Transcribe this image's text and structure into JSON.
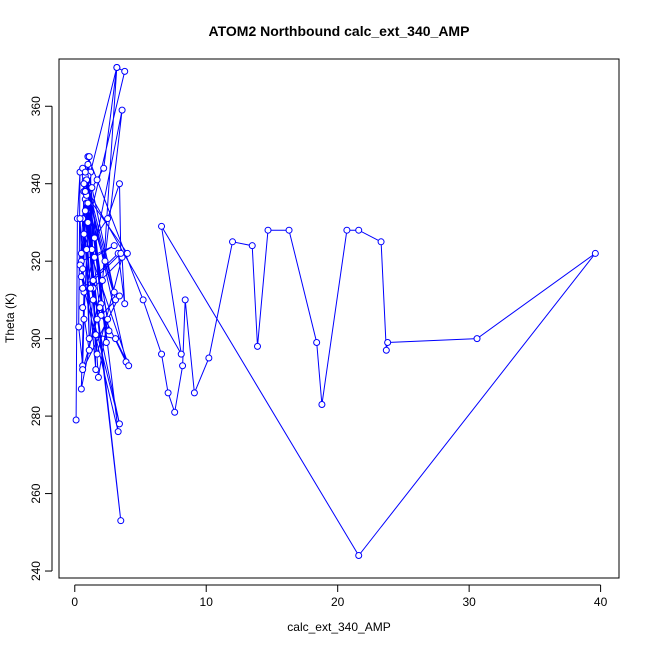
{
  "chart_data": {
    "type": "scatter",
    "title": "ATOM2 Northbound calc_ext_340_AMP",
    "xlabel": "calc_ext_340_AMP",
    "ylabel": "Theta (K)",
    "xlim": [
      -1.2,
      41.4
    ],
    "ylim": [
      238.2,
      372.2
    ],
    "xticks": [
      0,
      10,
      20,
      30,
      40
    ],
    "yticks": [
      240,
      260,
      280,
      300,
      320,
      340,
      360
    ],
    "grid": false,
    "legend": "none",
    "style": "points connected by lines",
    "color": "#0000ff",
    "series": [
      {
        "x": [
          0.1,
          0.2,
          0.4,
          0.3,
          0.6,
          0.7,
          1.0,
          3.5,
          0.8,
          1.5,
          3.0,
          0.5,
          0.8,
          2.2,
          3.2,
          1.2,
          1.6,
          0.6,
          0.9,
          1.8,
          2.5,
          0.6,
          1.1,
          0.9,
          1.3,
          1.0,
          2.0,
          3.2,
          3.8,
          0.5,
          0.4,
          0.7,
          0.5,
          2.1,
          3.6,
          0.6,
          1.1,
          1.4,
          4.0,
          0.7,
          1.5,
          3.3,
          0.5,
          0.9,
          1.9,
          3.9,
          0.8,
          2.3,
          3.1,
          0.7,
          1.2,
          2.0,
          3.4,
          0.6,
          1.7,
          3.4,
          0.4,
          0.8,
          1.7,
          3.6,
          3.8,
          3.3,
          0.6,
          1.0,
          1.6,
          3.1,
          4.1,
          0.7,
          1.4,
          2.6,
          0.8,
          1.3,
          3.0,
          0.9,
          2.4,
          1.0,
          1.7,
          5.2,
          6.6,
          7.1,
          7.6,
          8.2,
          8.4,
          9.1,
          10.2,
          12.0,
          13.5,
          13.9,
          14.7,
          16.3,
          18.4,
          18.8,
          20.7,
          21.6,
          23.3,
          23.7,
          23.8,
          30.6,
          39.6,
          21.6,
          6.6,
          8.1,
          0.7,
          1.1,
          0.6,
          0.8,
          1.0,
          1.4,
          3.5,
          3.4,
          2.5,
          0.9
        ],
        "y": [
          279,
          331,
          343,
          303,
          293,
          305,
          330,
          253,
          333,
          321,
          324,
          320,
          336,
          344,
          370,
          343,
          292,
          331,
          335,
          290,
          305,
          344,
          300,
          337,
          323,
          342,
          309,
          370,
          369,
          322,
          331,
          312,
          287,
          315,
          359,
          308,
          297,
          313,
          322,
          338,
          326,
          276,
          316,
          335,
          308,
          294,
          341,
          320,
          310,
          338,
          313,
          306,
          311,
          292,
          305,
          278,
          319,
          342,
          296,
          321,
          309,
          322,
          313,
          345,
          301,
          300,
          293,
          327,
          310,
          302,
          343,
          339,
          312,
          341,
          299,
          347,
          341,
          310,
          296,
          286,
          281,
          293,
          310,
          286,
          295,
          325,
          324,
          298,
          328,
          328,
          299,
          283,
          328,
          328,
          325,
          297,
          299,
          300,
          322,
          244,
          329,
          296,
          340,
          347,
          318,
          338,
          335,
          315,
          322,
          340,
          331,
          323
        ]
      }
    ]
  }
}
